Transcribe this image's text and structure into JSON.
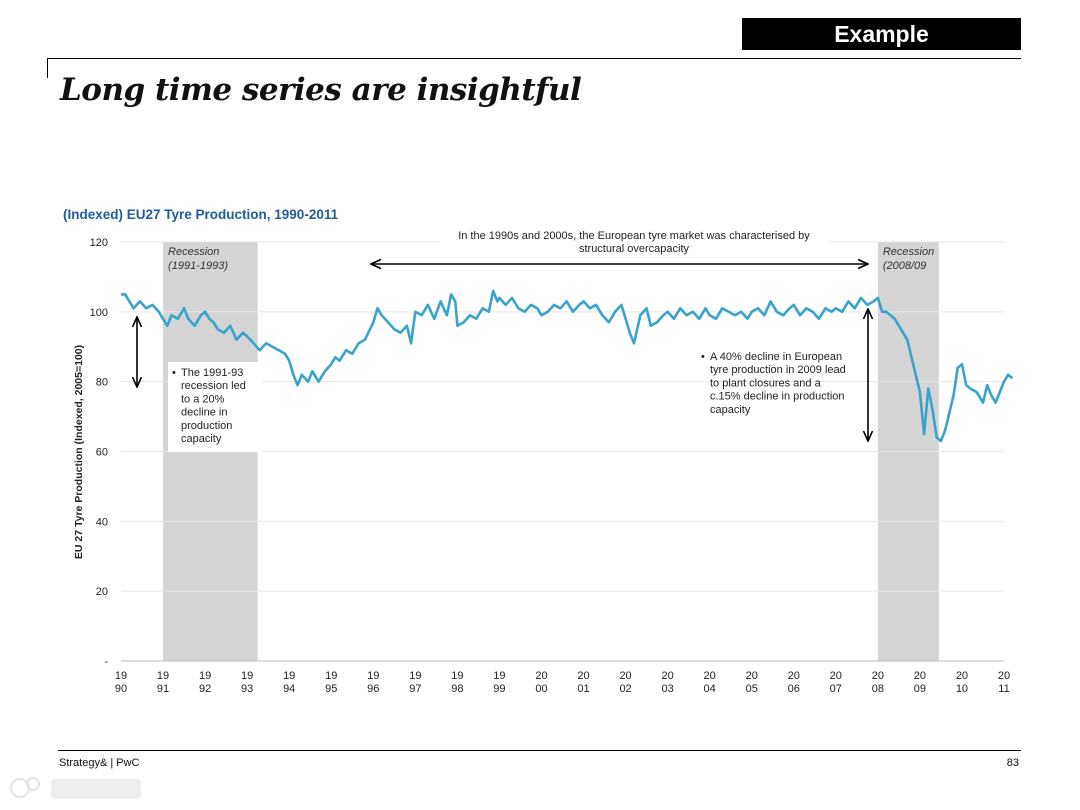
{
  "header": {
    "badge": "Example",
    "title": "Long time series are insightful"
  },
  "footer": {
    "source": "Strategy& | PwC",
    "page": "83"
  },
  "colors": {
    "series": "#3aa3cc",
    "shade": "#d4d4d4",
    "title_blue": "#1f5c99"
  },
  "chart_data": {
    "type": "line",
    "title": "(Indexed) EU27 Tyre Production, 1990-2011",
    "ylabel": "EU 27 Tyre Production (Indexed, 2005=100)",
    "xlabel": "",
    "ylim": [
      0,
      120
    ],
    "y_ticks": [
      "-",
      "20",
      "40",
      "60",
      "80",
      "100",
      "120"
    ],
    "x_ticks": [
      [
        "19",
        "90"
      ],
      [
        "19",
        "91"
      ],
      [
        "19",
        "92"
      ],
      [
        "19",
        "93"
      ],
      [
        "19",
        "94"
      ],
      [
        "19",
        "95"
      ],
      [
        "19",
        "96"
      ],
      [
        "19",
        "97"
      ],
      [
        "19",
        "98"
      ],
      [
        "19",
        "99"
      ],
      [
        "20",
        "00"
      ],
      [
        "20",
        "01"
      ],
      [
        "20",
        "02"
      ],
      [
        "20",
        "03"
      ],
      [
        "20",
        "04"
      ],
      [
        "20",
        "05"
      ],
      [
        "20",
        "06"
      ],
      [
        "20",
        "07"
      ],
      [
        "20",
        "08"
      ],
      [
        "20",
        "09"
      ],
      [
        "20",
        "10"
      ],
      [
        "20",
        "11"
      ]
    ],
    "grid": true,
    "series": [
      {
        "points": [
          [
            1990.0,
            105
          ],
          [
            1990.1,
            105
          ],
          [
            1990.2,
            103
          ],
          [
            1990.3,
            101
          ],
          [
            1990.45,
            103
          ],
          [
            1990.6,
            101
          ],
          [
            1990.75,
            102
          ],
          [
            1990.9,
            100
          ],
          [
            1991.0,
            98
          ],
          [
            1991.1,
            96
          ],
          [
            1991.2,
            99
          ],
          [
            1991.35,
            98
          ],
          [
            1991.5,
            101
          ],
          [
            1991.6,
            98
          ],
          [
            1991.75,
            96
          ],
          [
            1991.9,
            99
          ],
          [
            1992.0,
            100
          ],
          [
            1992.1,
            98
          ],
          [
            1992.2,
            97
          ],
          [
            1992.3,
            95
          ],
          [
            1992.45,
            94
          ],
          [
            1992.6,
            96
          ],
          [
            1992.75,
            92
          ],
          [
            1992.9,
            94
          ],
          [
            1993.0,
            93
          ],
          [
            1993.15,
            91
          ],
          [
            1993.3,
            89
          ],
          [
            1993.45,
            91
          ],
          [
            1993.6,
            90
          ],
          [
            1993.75,
            89
          ],
          [
            1993.9,
            88
          ],
          [
            1994.0,
            86
          ],
          [
            1994.1,
            82
          ],
          [
            1994.2,
            79
          ],
          [
            1994.3,
            82
          ],
          [
            1994.45,
            80
          ],
          [
            1994.55,
            83
          ],
          [
            1994.7,
            80
          ],
          [
            1994.85,
            83
          ],
          [
            1995.0,
            85
          ],
          [
            1995.1,
            87
          ],
          [
            1995.2,
            86
          ],
          [
            1995.35,
            89
          ],
          [
            1995.5,
            88
          ],
          [
            1995.65,
            91
          ],
          [
            1995.8,
            92
          ],
          [
            1996.0,
            97
          ],
          [
            1996.1,
            101
          ],
          [
            1996.2,
            99
          ],
          [
            1996.35,
            97
          ],
          [
            1996.5,
            95
          ],
          [
            1996.65,
            94
          ],
          [
            1996.8,
            96
          ],
          [
            1996.9,
            91
          ],
          [
            1997.0,
            100
          ],
          [
            1997.15,
            99
          ],
          [
            1997.3,
            102
          ],
          [
            1997.45,
            98
          ],
          [
            1997.6,
            103
          ],
          [
            1997.75,
            99
          ],
          [
            1997.85,
            105
          ],
          [
            1997.95,
            103
          ],
          [
            1998.0,
            96
          ],
          [
            1998.15,
            97
          ],
          [
            1998.3,
            99
          ],
          [
            1998.45,
            98
          ],
          [
            1998.6,
            101
          ],
          [
            1998.75,
            100
          ],
          [
            1998.85,
            106
          ],
          [
            1998.95,
            103
          ],
          [
            1999.0,
            104
          ],
          [
            1999.15,
            102
          ],
          [
            1999.3,
            104
          ],
          [
            1999.45,
            101
          ],
          [
            1999.6,
            100
          ],
          [
            1999.75,
            102
          ],
          [
            1999.9,
            101
          ],
          [
            2000.0,
            99
          ],
          [
            2000.15,
            100
          ],
          [
            2000.3,
            102
          ],
          [
            2000.45,
            101
          ],
          [
            2000.6,
            103
          ],
          [
            2000.75,
            100
          ],
          [
            2000.9,
            102
          ],
          [
            2001.0,
            103
          ],
          [
            2001.15,
            101
          ],
          [
            2001.3,
            102
          ],
          [
            2001.45,
            99
          ],
          [
            2001.6,
            97
          ],
          [
            2001.75,
            100
          ],
          [
            2001.9,
            102
          ],
          [
            2002.0,
            98
          ],
          [
            2002.1,
            94
          ],
          [
            2002.2,
            91
          ],
          [
            2002.35,
            99
          ],
          [
            2002.5,
            101
          ],
          [
            2002.6,
            96
          ],
          [
            2002.75,
            97
          ],
          [
            2002.9,
            99
          ],
          [
            2003.0,
            100
          ],
          [
            2003.15,
            98
          ],
          [
            2003.3,
            101
          ],
          [
            2003.45,
            99
          ],
          [
            2003.6,
            100
          ],
          [
            2003.75,
            98
          ],
          [
            2003.9,
            101
          ],
          [
            2004.0,
            99
          ],
          [
            2004.15,
            98
          ],
          [
            2004.3,
            101
          ],
          [
            2004.45,
            100
          ],
          [
            2004.6,
            99
          ],
          [
            2004.75,
            100
          ],
          [
            2004.9,
            98
          ],
          [
            2005.0,
            100
          ],
          [
            2005.15,
            101
          ],
          [
            2005.3,
            99
          ],
          [
            2005.45,
            103
          ],
          [
            2005.6,
            100
          ],
          [
            2005.75,
            99
          ],
          [
            2005.9,
            101
          ],
          [
            2006.0,
            102
          ],
          [
            2006.15,
            99
          ],
          [
            2006.3,
            101
          ],
          [
            2006.45,
            100
          ],
          [
            2006.6,
            98
          ],
          [
            2006.75,
            101
          ],
          [
            2006.9,
            100
          ],
          [
            2007.0,
            101
          ],
          [
            2007.15,
            100
          ],
          [
            2007.3,
            103
          ],
          [
            2007.45,
            101
          ],
          [
            2007.6,
            104
          ],
          [
            2007.75,
            102
          ],
          [
            2007.9,
            103
          ],
          [
            2008.0,
            104
          ],
          [
            2008.1,
            100
          ],
          [
            2008.2,
            100
          ],
          [
            2008.3,
            99
          ],
          [
            2008.4,
            98
          ],
          [
            2008.5,
            96
          ],
          [
            2008.6,
            94
          ],
          [
            2008.7,
            92
          ],
          [
            2008.8,
            87
          ],
          [
            2008.9,
            82
          ],
          [
            2009.0,
            77
          ],
          [
            2009.1,
            65
          ],
          [
            2009.2,
            78
          ],
          [
            2009.3,
            72
          ],
          [
            2009.4,
            64
          ],
          [
            2009.5,
            63
          ],
          [
            2009.6,
            66
          ],
          [
            2009.7,
            71
          ],
          [
            2009.8,
            76
          ],
          [
            2009.9,
            84
          ],
          [
            2010.0,
            85
          ],
          [
            2010.1,
            79
          ],
          [
            2010.2,
            78
          ],
          [
            2010.35,
            77
          ],
          [
            2010.5,
            74
          ],
          [
            2010.6,
            79
          ],
          [
            2010.7,
            76
          ],
          [
            2010.8,
            74
          ],
          [
            2010.9,
            77
          ],
          [
            2011.0,
            80
          ],
          [
            2011.1,
            82
          ],
          [
            2011.2,
            81
          ]
        ]
      }
    ],
    "shaded_regions": [
      {
        "from": 1991.0,
        "to": 1993.25,
        "label1": "Recession",
        "label2": "(1991-1993)"
      },
      {
        "from": 2008.0,
        "to": 2009.45,
        "label1": "Recession",
        "label2": "(2008/09"
      }
    ],
    "annotations": {
      "top_line1": "In the 1990s and 2000s, the European tyre market was characterised by",
      "top_line2": "structural overcapacity",
      "left_note": [
        "•",
        "The 1991-93",
        "recession led",
        "to a 20%",
        "decline in",
        "production",
        "capacity"
      ],
      "right_note": [
        "•",
        "A 40% decline in European",
        "tyre production in 2009 lead",
        "to plant closures and a",
        "c.15% decline in production",
        "capacity"
      ]
    }
  }
}
